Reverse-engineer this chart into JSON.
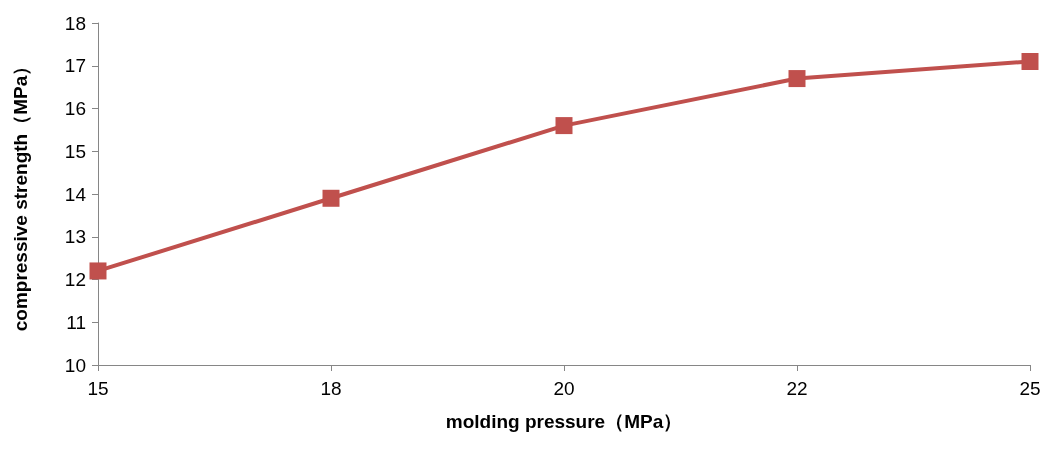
{
  "chart_data": {
    "type": "line",
    "xlabel": "molding pressure（MPa）",
    "ylabel": "compressive strength（MPa）",
    "categories": [
      "15",
      "18",
      "20",
      "22",
      "25"
    ],
    "series": [
      {
        "color": "#c0504d",
        "values": [
          12.2,
          13.9,
          15.6,
          16.7,
          17.1
        ]
      }
    ],
    "ylim": [
      10,
      18
    ],
    "yticks": [
      10,
      11,
      12,
      13,
      14,
      15,
      16,
      17,
      18
    ],
    "grid": false,
    "marker": "square",
    "line_style": "solid"
  }
}
